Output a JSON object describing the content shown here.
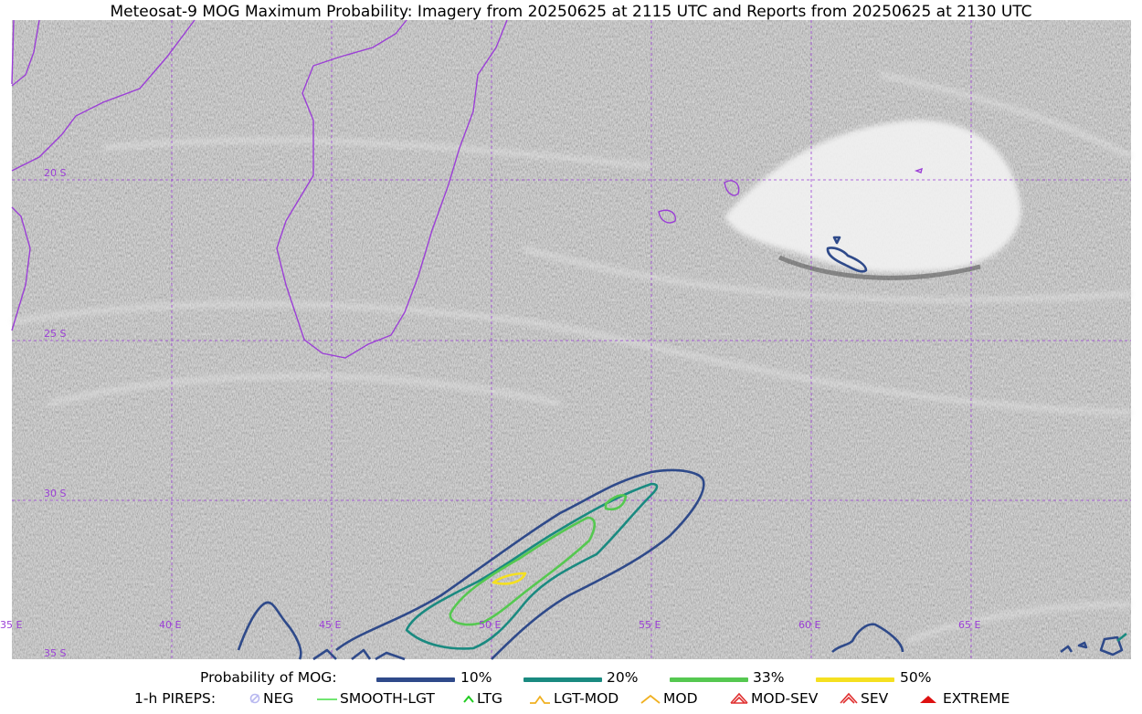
{
  "title": "Meteosat-9 MOG Maximum Probability: Imagery from 20250625 at 2115 UTC and Reports from 20250625 at 2130 UTC",
  "map": {
    "lat_labels": [
      "20 S",
      "25 S",
      "30 S",
      "35 S"
    ],
    "lon_labels": [
      "35 E",
      "40 E",
      "45 E",
      "50 E",
      "55 E",
      "60 E",
      "65 E"
    ],
    "colors": {
      "coastline": "#9b3fd6",
      "gridline": "#9b3fd6",
      "grid_label": "#9b3fd6",
      "contour_10": "#2f4a8a",
      "contour_20": "#1a8a80",
      "contour_33": "#55c850",
      "contour_50": "#f5e020"
    }
  },
  "legend": {
    "probability": {
      "label": "Probability of MOG:",
      "items": [
        {
          "label": "10%",
          "color": "#2f4a8a"
        },
        {
          "label": "20%",
          "color": "#1a8a80"
        },
        {
          "label": "33%",
          "color": "#55c850"
        },
        {
          "label": "50%",
          "color": "#f5e020"
        }
      ]
    },
    "pireps": {
      "label": "1-h PIREPS:",
      "items": [
        {
          "label": "NEG",
          "icon": "neg-icon",
          "color": "#b8b8f0"
        },
        {
          "label": "SMOOTH-LGT",
          "icon": "smooth-lgt-icon",
          "color": "#44dd44"
        },
        {
          "label": "LTG",
          "icon": "ltg-icon",
          "color": "#22cc22"
        },
        {
          "label": "LGT-MOD",
          "icon": "lgt-mod-icon",
          "color": "#f0b020"
        },
        {
          "label": "MOD",
          "icon": "mod-icon",
          "color": "#f0b020"
        },
        {
          "label": "MOD-SEV",
          "icon": "mod-sev-icon",
          "color": "#e03030"
        },
        {
          "label": "SEV",
          "icon": "sev-icon",
          "color": "#e03030"
        },
        {
          "label": "EXTREME",
          "icon": "extreme-icon",
          "color": "#dd1111"
        }
      ]
    }
  }
}
